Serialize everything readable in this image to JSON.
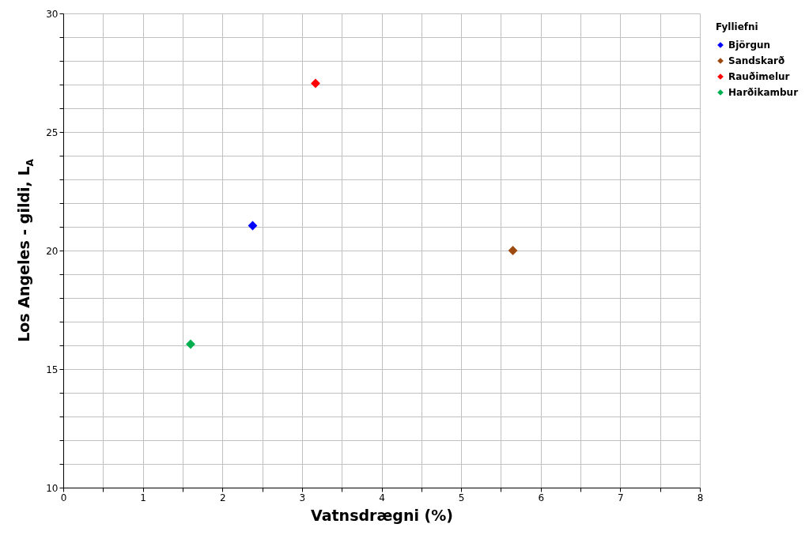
{
  "chart_data": {
    "type": "scatter",
    "xlabel": "Vatnsdrægni (%)",
    "ylabel": "Los Angeles - gildi, L$_{A}$",
    "legend_title": "Fylliefni",
    "legend": "top right",
    "marker": "diamond",
    "grid": true,
    "xlim": [
      0,
      8
    ],
    "ylim": [
      10,
      30
    ],
    "xticks": [
      0,
      {
        "value": 0.5,
        "label": null
      },
      1,
      {
        "value": 1.5,
        "label": null
      },
      2,
      {
        "value": 2.5,
        "label": null
      },
      3,
      {
        "value": 3.5,
        "label": null
      },
      4,
      {
        "value": 4.5,
        "label": null
      },
      5,
      {
        "value": 5.5,
        "label": null
      },
      6,
      {
        "value": 6.5,
        "label": null
      },
      7,
      {
        "value": 7.5,
        "label": null
      },
      8
    ],
    "yticks": [
      10,
      {
        "value": 11,
        "label": null
      },
      {
        "value": 12,
        "label": null
      },
      {
        "value": 13,
        "label": null
      },
      {
        "value": 14,
        "label": null
      },
      15,
      {
        "value": 16,
        "label": null
      },
      {
        "value": 17,
        "label": null
      },
      {
        "value": 18,
        "label": null
      },
      {
        "value": 19,
        "label": null
      },
      20,
      {
        "value": 21,
        "label": null
      },
      {
        "value": 22,
        "label": null
      },
      {
        "value": 23,
        "label": null
      },
      {
        "value": 24,
        "label": null
      },
      25,
      {
        "value": 26,
        "label": null
      },
      {
        "value": 27,
        "label": null
      },
      {
        "value": 28,
        "label": null
      },
      {
        "value": 29,
        "label": null
      },
      30
    ],
    "series": [
      {
        "name": "Björgun",
        "color": "#0000ff",
        "x": [
          2.38
        ],
        "values": [
          21.05
        ]
      },
      {
        "name": "Sandskarð",
        "color": "#9c4a0f",
        "x": [
          5.65
        ],
        "values": [
          20.0
        ]
      },
      {
        "name": "Rauðimelur",
        "color": "#ff0000",
        "x": [
          3.17
        ],
        "values": [
          27.05
        ]
      },
      {
        "name": "Harðikambur",
        "color": "#00b050",
        "x": [
          1.6
        ],
        "values": [
          16.05
        ]
      }
    ]
  }
}
